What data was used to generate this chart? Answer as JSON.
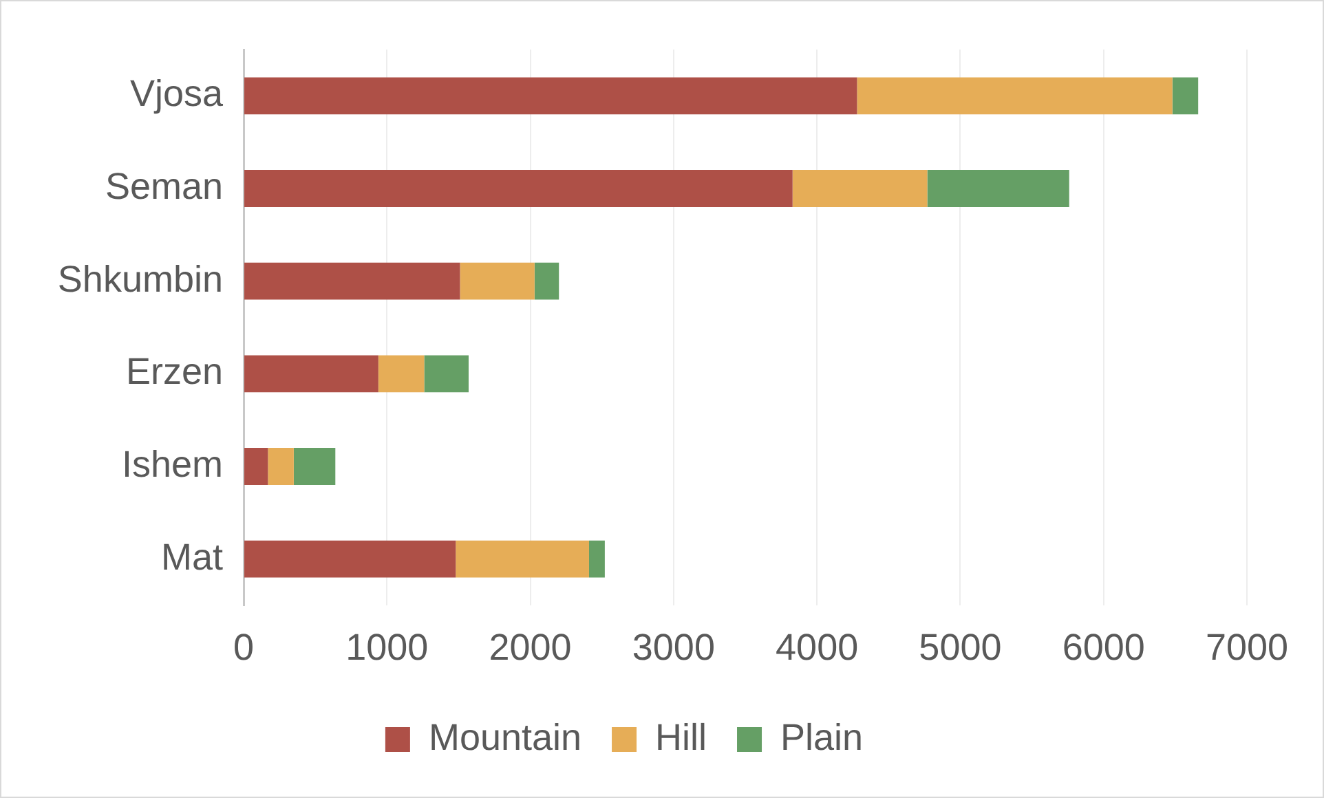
{
  "chart_data": {
    "type": "bar",
    "orientation": "horizontal",
    "stacked": true,
    "categories": [
      "Vjosa",
      "Seman",
      "Shkumbin",
      "Erzen",
      "Ishem",
      "Mat"
    ],
    "series": [
      {
        "name": "Mountain",
        "color": "#ae5047",
        "values": [
          4280,
          3830,
          1510,
          940,
          170,
          1480
        ]
      },
      {
        "name": "Hill",
        "color": "#e6ad57",
        "values": [
          2200,
          940,
          520,
          320,
          180,
          930
        ]
      },
      {
        "name": "Plain",
        "color": "#659f65",
        "values": [
          180,
          990,
          170,
          310,
          290,
          110
        ]
      }
    ],
    "xlim": [
      0,
      7000
    ],
    "xticks": [
      0,
      1000,
      2000,
      3000,
      4000,
      5000,
      6000,
      7000
    ],
    "grid": "x",
    "legend": "bottom"
  }
}
